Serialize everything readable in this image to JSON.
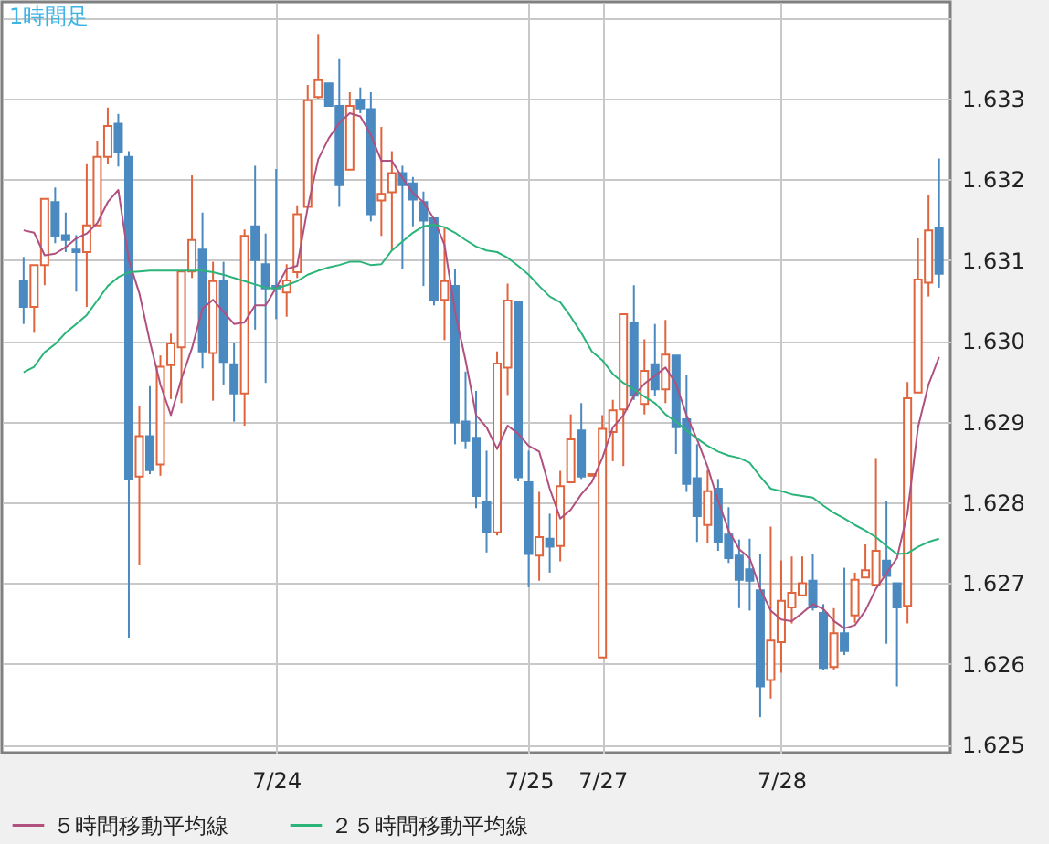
{
  "chart_data": {
    "type": "candlestick",
    "title": "1時間足",
    "categories": [
      null,
      null,
      null,
      null,
      null,
      null,
      null,
      null,
      null,
      null,
      null,
      null,
      null,
      null,
      null,
      null,
      null,
      null,
      null,
      null,
      null,
      null,
      null,
      null,
      "7/24",
      null,
      null,
      null,
      null,
      null,
      null,
      null,
      null,
      null,
      null,
      null,
      null,
      null,
      null,
      null,
      null,
      null,
      null,
      null,
      null,
      null,
      null,
      null,
      "7/25",
      null,
      null,
      null,
      null,
      null,
      null,
      "7/27",
      null,
      null,
      null,
      null,
      null,
      null,
      null,
      null,
      null,
      null,
      null,
      null,
      null,
      null,
      null,
      null,
      "7/28",
      null,
      null,
      null,
      null,
      null,
      null,
      null,
      null,
      null,
      null,
      null,
      null,
      null,
      null,
      null
    ],
    "ohlc": [
      [
        1.63074,
        1.63104,
        1.63021,
        1.63042
      ],
      [
        1.63042,
        1.63094,
        1.6301,
        1.63094
      ],
      [
        1.63094,
        1.63176,
        1.63069,
        1.63176
      ],
      [
        1.63172,
        1.6319,
        1.63121,
        1.6313
      ],
      [
        1.63131,
        1.63159,
        1.6311,
        1.63125
      ],
      [
        1.63113,
        1.63131,
        1.63061,
        1.6311
      ],
      [
        1.6311,
        1.6322,
        1.63042,
        1.63143
      ],
      [
        1.63143,
        1.63248,
        1.63143,
        1.63228
      ],
      [
        1.63228,
        1.63289,
        1.63219,
        1.63266
      ],
      [
        1.63269,
        1.63281,
        1.63216,
        1.63234
      ],
      [
        1.63228,
        1.63235,
        1.62632,
        1.62829
      ],
      [
        1.62832,
        1.62919,
        1.62722,
        1.62882
      ],
      [
        1.62882,
        1.62944,
        1.62835,
        1.6284
      ],
      [
        1.62847,
        1.62982,
        1.62833,
        1.62968
      ],
      [
        1.6297,
        1.63009,
        1.62928,
        1.62997
      ],
      [
        1.62992,
        1.63086,
        1.62923,
        1.63086
      ],
      [
        1.63086,
        1.63205,
        1.63078,
        1.63125
      ],
      [
        1.63113,
        1.63159,
        1.62966,
        1.62987
      ],
      [
        1.62985,
        1.63098,
        1.62926,
        1.63074
      ],
      [
        1.63074,
        1.63098,
        1.62946,
        1.62974
      ],
      [
        1.62971,
        1.62998,
        1.629,
        1.62935
      ],
      [
        1.62935,
        1.63138,
        1.62895,
        1.6313
      ],
      [
        1.63142,
        1.63217,
        1.63014,
        1.631
      ],
      [
        1.63095,
        1.63133,
        1.62948,
        1.63065
      ],
      [
        1.63068,
        1.63213,
        1.63027,
        1.63065
      ],
      [
        1.6306,
        1.63095,
        1.6303,
        1.63075
      ],
      [
        1.63085,
        1.63168,
        1.63078,
        1.63157
      ],
      [
        1.63166,
        1.63317,
        1.63166,
        1.63298
      ],
      [
        1.63302,
        1.6338,
        1.633,
        1.63323
      ],
      [
        1.63319,
        1.63319,
        1.63291,
        1.63291
      ],
      [
        1.63291,
        1.63349,
        1.63166,
        1.63193
      ],
      [
        1.63212,
        1.63308,
        1.63212,
        1.63291
      ],
      [
        1.63299,
        1.63314,
        1.63282,
        1.63288
      ],
      [
        1.63287,
        1.63308,
        1.63148,
        1.63157
      ],
      [
        1.63174,
        1.63265,
        1.6313,
        1.63182
      ],
      [
        1.63184,
        1.63235,
        1.63112,
        1.63208
      ],
      [
        1.63208,
        1.63217,
        1.63089,
        1.63193
      ],
      [
        1.63195,
        1.63203,
        1.63142,
        1.63175
      ],
      [
        1.63172,
        1.63185,
        1.63068,
        1.63149
      ],
      [
        1.63152,
        1.63152,
        1.63044,
        1.6305
      ],
      [
        1.63051,
        1.6314,
        1.63001,
        1.63074
      ],
      [
        1.63068,
        1.63089,
        1.62872,
        1.62899
      ],
      [
        1.629,
        1.62962,
        1.62866,
        1.62876
      ],
      [
        1.6288,
        1.62938,
        1.62793,
        1.62808
      ],
      [
        1.62801,
        1.62864,
        1.62738,
        1.62763
      ],
      [
        1.62763,
        1.62987,
        1.62759,
        1.62972
      ],
      [
        1.62967,
        1.63071,
        1.62933,
        1.6305
      ],
      [
        1.63048,
        1.63048,
        1.62826,
        1.62831
      ],
      [
        1.62825,
        1.62864,
        1.62695,
        1.62736
      ],
      [
        1.62734,
        1.62813,
        1.62703,
        1.62757
      ],
      [
        1.62755,
        1.62786,
        1.62713,
        1.62745
      ],
      [
        1.62746,
        1.62839,
        1.62727,
        1.6282
      ],
      [
        1.62825,
        1.62909,
        1.62825,
        1.62878
      ],
      [
        1.62889,
        1.62923,
        1.62829,
        1.62832
      ],
      [
        1.62833,
        1.62835,
        1.62833,
        1.62835
      ],
      [
        1.62608,
        1.62908,
        1.62608,
        1.62891
      ],
      [
        1.62887,
        1.62927,
        1.62851,
        1.62914
      ],
      [
        1.62915,
        1.63033,
        1.62845,
        1.63033
      ],
      [
        1.63023,
        1.63069,
        1.62927,
        1.62932
      ],
      [
        1.62922,
        1.63002,
        1.62909,
        1.62963
      ],
      [
        1.62971,
        1.63021,
        1.62932,
        1.6294
      ],
      [
        1.6294,
        1.63026,
        1.62923,
        1.62983
      ],
      [
        1.62982,
        1.62982,
        1.6286,
        1.62893
      ],
      [
        1.62903,
        1.62958,
        1.62813,
        1.62823
      ],
      [
        1.6283,
        1.62872,
        1.62751,
        1.62783
      ],
      [
        1.62772,
        1.6284,
        1.62749,
        1.62814
      ],
      [
        1.62817,
        1.62829,
        1.6274,
        1.62751
      ],
      [
        1.6276,
        1.62794,
        1.62725,
        1.62731
      ],
      [
        1.62734,
        1.62754,
        1.62669,
        1.62704
      ],
      [
        1.62717,
        1.62755,
        1.62666,
        1.62703
      ],
      [
        1.62691,
        1.62736,
        1.62534,
        1.62572
      ],
      [
        1.6258,
        1.6277,
        1.62557,
        1.62629
      ],
      [
        1.62627,
        1.62728,
        1.62589,
        1.62678
      ],
      [
        1.6267,
        1.62733,
        1.6265,
        1.62688
      ],
      [
        1.62685,
        1.62733,
        1.62685,
        1.627
      ],
      [
        1.62703,
        1.62736,
        1.62666,
        1.6267
      ],
      [
        1.62663,
        1.62674,
        1.62593,
        1.62595
      ],
      [
        1.62596,
        1.62669,
        1.62593,
        1.62638
      ],
      [
        1.62638,
        1.62719,
        1.62611,
        1.62616
      ],
      [
        1.6266,
        1.62713,
        1.62651,
        1.62704
      ],
      [
        1.62707,
        1.62748,
        1.62707,
        1.62716
      ],
      [
        1.62698,
        1.62855,
        1.62698,
        1.6274
      ],
      [
        1.62728,
        1.62802,
        1.62625,
        1.62709
      ],
      [
        1.627,
        1.627,
        1.62572,
        1.6267
      ],
      [
        1.62672,
        1.62949,
        1.6265,
        1.62929
      ],
      [
        1.62936,
        1.63127,
        1.62936,
        1.63076
      ],
      [
        1.63072,
        1.63181,
        1.63055,
        1.63137
      ],
      [
        1.6314,
        1.63226,
        1.63066,
        1.63083
      ]
    ],
    "colors": [
      "#4a8ac0",
      "#e0643c",
      "#e0643c",
      "#4a8ac0",
      "#4a8ac0",
      "#4a8ac0",
      "#e0643c",
      "#e0643c",
      "#e0643c",
      "#4a8ac0",
      "#4a8ac0",
      "#e0643c",
      "#4a8ac0",
      "#e0643c",
      "#e0643c",
      "#e0643c",
      "#e0643c",
      "#4a8ac0",
      "#e0643c",
      "#4a8ac0",
      "#4a8ac0",
      "#e0643c",
      "#4a8ac0",
      "#4a8ac0",
      "#4a8ac0",
      "#e0643c",
      "#e0643c",
      "#e0643c",
      "#e0643c",
      "#4a8ac0",
      "#4a8ac0",
      "#e0643c",
      "#4a8ac0",
      "#4a8ac0",
      "#e0643c",
      "#e0643c",
      "#4a8ac0",
      "#4a8ac0",
      "#4a8ac0",
      "#4a8ac0",
      "#e0643c",
      "#4a8ac0",
      "#4a8ac0",
      "#4a8ac0",
      "#4a8ac0",
      "#e0643c",
      "#e0643c",
      "#4a8ac0",
      "#4a8ac0",
      "#e0643c",
      "#4a8ac0",
      "#e0643c",
      "#e0643c",
      "#4a8ac0",
      "#e0643c",
      "#e0643c",
      "#e0643c",
      "#e0643c",
      "#4a8ac0",
      "#e0643c",
      "#4a8ac0",
      "#e0643c",
      "#4a8ac0",
      "#4a8ac0",
      "#4a8ac0",
      "#e0643c",
      "#4a8ac0",
      "#4a8ac0",
      "#4a8ac0",
      "#4a8ac0",
      "#4a8ac0",
      "#e0643c",
      "#e0643c",
      "#e0643c",
      "#e0643c",
      "#4a8ac0",
      "#4a8ac0",
      "#e0643c",
      "#4a8ac0",
      "#e0643c",
      "#e0643c",
      "#e0643c",
      "#4a8ac0",
      "#4a8ac0",
      "#e0643c",
      "#e0643c",
      "#e0643c",
      "#4a8ac0"
    ],
    "series": [
      {
        "name": "５時間移動平均線",
        "type": "line",
        "color": "#b0507f",
        "values": [
          1.63137,
          1.63134,
          1.63106,
          1.63108,
          1.63116,
          1.63127,
          1.63133,
          1.63146,
          1.63172,
          1.63187,
          1.631,
          1.63059,
          1.62999,
          1.62946,
          1.62908,
          1.62953,
          1.62991,
          1.6304,
          1.63051,
          1.63036,
          1.63021,
          1.63023,
          1.63044,
          1.63044,
          1.63066,
          1.63089,
          1.63093,
          1.63165,
          1.63225,
          1.63251,
          1.6327,
          1.63282,
          1.63278,
          1.63255,
          1.63223,
          1.63223,
          1.63202,
          1.63183,
          1.63172,
          1.63151,
          1.63119,
          1.63036,
          1.62976,
          1.62908,
          1.62893,
          1.62866,
          1.62895,
          1.62885,
          1.6287,
          1.62863,
          1.62817,
          1.6278,
          1.62791,
          1.6281,
          1.62825,
          1.62855,
          1.62893,
          1.62908,
          1.62932,
          1.62947,
          1.62957,
          1.62967,
          1.62947,
          1.62908,
          1.62878,
          1.62844,
          1.62802,
          1.62765,
          1.62742,
          1.62731,
          1.62693,
          1.62666,
          1.62655,
          1.62653,
          1.62663,
          1.62674,
          1.62668,
          1.62653,
          1.62644,
          1.62648,
          1.62666,
          1.62693,
          1.62712,
          1.62731,
          1.62787,
          1.62893,
          1.62946,
          1.6298
        ]
      },
      {
        "name": "２５時間移動平均線",
        "type": "line",
        "color": "#2ab47a",
        "values": [
          1.62961,
          1.62968,
          1.62986,
          1.62996,
          1.6301,
          1.63021,
          1.63032,
          1.6305,
          1.63068,
          1.63079,
          1.63085,
          1.63086,
          1.63087,
          1.63087,
          1.63087,
          1.63087,
          1.63087,
          1.63087,
          1.63085,
          1.63082,
          1.63078,
          1.63074,
          1.6307,
          1.63066,
          1.63065,
          1.63069,
          1.63074,
          1.63082,
          1.63087,
          1.63091,
          1.63094,
          1.63098,
          1.63098,
          1.63094,
          1.63095,
          1.63112,
          1.63123,
          1.63134,
          1.63142,
          1.63144,
          1.63141,
          1.63134,
          1.63125,
          1.63117,
          1.63112,
          1.6311,
          1.63103,
          1.63093,
          1.63082,
          1.63068,
          1.63055,
          1.63048,
          1.6303,
          1.6301,
          1.62987,
          1.62976,
          1.62959,
          1.62948,
          1.6294,
          1.62931,
          1.62923,
          1.62909,
          1.629,
          1.62889,
          1.62879,
          1.6287,
          1.62863,
          1.62858,
          1.62855,
          1.62849,
          1.62832,
          1.62817,
          1.62814,
          1.6281,
          1.62808,
          1.62806,
          1.62796,
          1.62787,
          1.6278,
          1.62772,
          1.62765,
          1.62757,
          1.62746,
          1.62736,
          1.62737,
          1.62745,
          1.62751,
          1.62755
        ]
      }
    ],
    "ylim": [
      1.6249,
      1.6342
    ],
    "yticks": [
      1.625,
      1.626,
      1.627,
      1.628,
      1.629,
      {
        "value": 1.63,
        "label": "1.630"
      },
      1.631,
      1.632,
      1.633,
      {
        "value": 1.634,
        "label": null
      }
    ],
    "grid": true,
    "legend": "bottom left"
  }
}
